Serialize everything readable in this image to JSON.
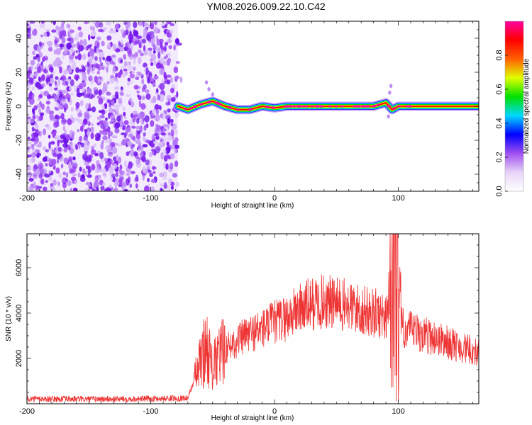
{
  "title": "YM08.2026.009.22.10.C42",
  "chart_data": [
    {
      "type": "heatmap",
      "xlabel": "Height of straight line (km)",
      "ylabel": "Frequency (Hz)",
      "xlim": [
        -200,
        165
      ],
      "ylim": [
        -50,
        50
      ],
      "x_ticks": [
        -200,
        -100,
        0,
        100
      ],
      "y_ticks": [
        -40,
        -20,
        0,
        20,
        40
      ],
      "colorbar": {
        "label": "Normalized spectral amplitude",
        "range": [
          0,
          1
        ],
        "ticks": [
          0.0,
          0.2,
          0.4,
          0.6,
          0.8
        ],
        "tick_labels": [
          "0.0",
          "0.2",
          "0.4",
          "0.6",
          "0.8"
        ],
        "colors": [
          "#ffffff",
          "#e8d4f8",
          "#a050f0",
          "#0000ff",
          "#00d8ff",
          "#00e000",
          "#e0ff00",
          "#ff6000",
          "#ff0000",
          "#ff00a0"
        ]
      },
      "noise_region_x": [
        -200,
        -78
      ],
      "signal_trace": [
        {
          "x": -78,
          "f": 0
        },
        {
          "x": -70,
          "f": -2
        },
        {
          "x": -60,
          "f": 1
        },
        {
          "x": -50,
          "f": 3
        },
        {
          "x": -40,
          "f": 0
        },
        {
          "x": -30,
          "f": -2
        },
        {
          "x": -20,
          "f": -2
        },
        {
          "x": -10,
          "f": 0
        },
        {
          "x": 0,
          "f": -1
        },
        {
          "x": 10,
          "f": 0
        },
        {
          "x": 80,
          "f": 0
        },
        {
          "x": 90,
          "f": 2
        },
        {
          "x": 95,
          "f": -2
        },
        {
          "x": 100,
          "f": 0
        },
        {
          "x": 165,
          "f": 0
        }
      ]
    },
    {
      "type": "line",
      "xlabel": "Height of straight line (km)",
      "ylabel": "SNR (10 * v/v)",
      "xlim": [
        -200,
        165
      ],
      "ylim": [
        0,
        7500
      ],
      "x_ticks": [
        -200,
        -100,
        0,
        100
      ],
      "y_ticks": [
        2000,
        4000,
        6000
      ],
      "color": "#ee3333",
      "envelope": [
        {
          "x": -200,
          "y": 220
        },
        {
          "x": -150,
          "y": 200
        },
        {
          "x": -100,
          "y": 220
        },
        {
          "x": -70,
          "y": 250
        },
        {
          "x": -60,
          "y": 1800
        },
        {
          "x": -55,
          "y": 2600
        },
        {
          "x": -50,
          "y": 1500
        },
        {
          "x": -45,
          "y": 2100
        },
        {
          "x": -40,
          "y": 2400
        },
        {
          "x": -30,
          "y": 2800
        },
        {
          "x": -20,
          "y": 3100
        },
        {
          "x": -10,
          "y": 3300
        },
        {
          "x": 0,
          "y": 3600
        },
        {
          "x": 10,
          "y": 3800
        },
        {
          "x": 20,
          "y": 4200
        },
        {
          "x": 30,
          "y": 4400
        },
        {
          "x": 40,
          "y": 4500
        },
        {
          "x": 50,
          "y": 4400
        },
        {
          "x": 60,
          "y": 4300
        },
        {
          "x": 70,
          "y": 4100
        },
        {
          "x": 80,
          "y": 4000
        },
        {
          "x": 90,
          "y": 3900
        },
        {
          "x": 95,
          "y": 5500
        },
        {
          "x": 98,
          "y": 6500
        },
        {
          "x": 100,
          "y": 3400
        },
        {
          "x": 110,
          "y": 3200
        },
        {
          "x": 120,
          "y": 3050
        },
        {
          "x": 130,
          "y": 2900
        },
        {
          "x": 140,
          "y": 2700
        },
        {
          "x": 150,
          "y": 2500
        },
        {
          "x": 165,
          "y": 2250
        }
      ]
    }
  ]
}
